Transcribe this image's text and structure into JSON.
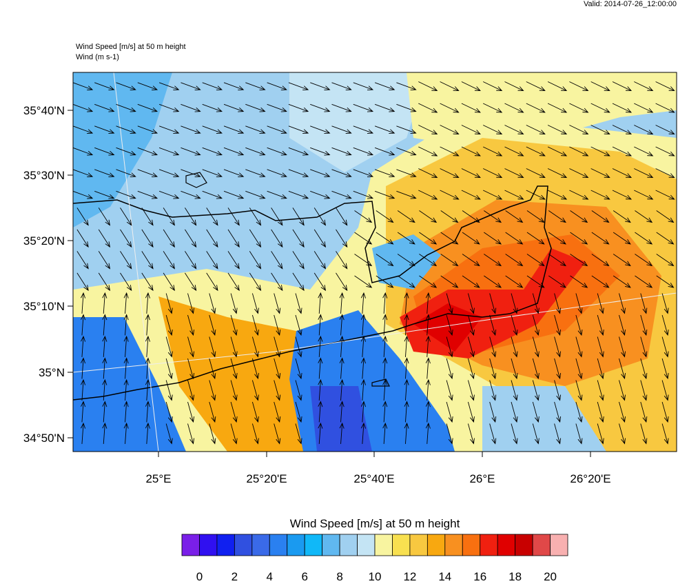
{
  "header": {
    "valid": "Valid: 2014-07-26_12:00:00"
  },
  "plot": {
    "title_lines": [
      "Wind Speed [m/s] at 50 m height",
      "Wind   (m s-1)"
    ],
    "lat_labels": [
      "35°40'N",
      "35°30'N",
      "35°20'N",
      "35°10'N",
      "35°N",
      "34°50'N"
    ],
    "lon_labels": [
      "25°E",
      "25°20'E",
      "25°40'E",
      "26°E",
      "26°20'E"
    ]
  },
  "colorbar": {
    "title": "Wind Speed [m/s] at 50 m height",
    "labels": [
      "0",
      "2",
      "4",
      "6",
      "8",
      "10",
      "12",
      "14",
      "16",
      "18",
      "20"
    ],
    "colors": [
      "#7a1fe8",
      "#3010f0",
      "#1020f0",
      "#3050e0",
      "#3a6ae8",
      "#2a80f0",
      "#1a9af0",
      "#10b8f8",
      "#60b8f0",
      "#a0d0f0",
      "#c4e4f4",
      "#f8f4a0",
      "#f8e050",
      "#f8c840",
      "#f8a810",
      "#f89020",
      "#f87010",
      "#f02010",
      "#e00000",
      "#c80000",
      "#e04848",
      "#f8b0b0"
    ]
  }
}
